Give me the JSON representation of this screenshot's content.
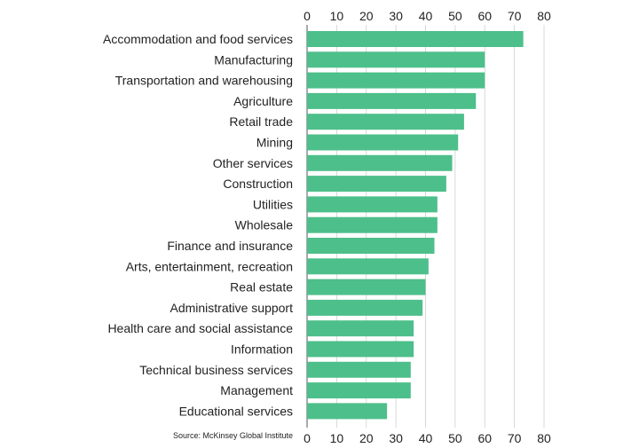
{
  "chart_data": {
    "type": "bar",
    "orientation": "horizontal",
    "title": "",
    "xlabel": "",
    "ylabel": "",
    "xlim": [
      0,
      80
    ],
    "ticks": [
      0,
      10,
      20,
      30,
      40,
      50,
      60,
      70,
      80
    ],
    "grid": true,
    "bar_color": "#4dbf8a",
    "categories": [
      "Accommodation and food services",
      "Manufacturing",
      "Transportation and warehousing",
      "Agriculture",
      "Retail trade",
      "Mining",
      "Other services",
      "Construction",
      "Utilities",
      "Wholesale",
      "Finance and insurance",
      "Arts, entertainment, recreation",
      "Real estate",
      "Administrative support",
      "Health care and social assistance",
      "Information",
      "Technical business services",
      "Management",
      "Educational services"
    ],
    "values": [
      73,
      60,
      60,
      57,
      53,
      51,
      49,
      47,
      44,
      44,
      43,
      41,
      40,
      39,
      36,
      36,
      35,
      35,
      27
    ]
  },
  "source": "Source: McKinsey Global Institute"
}
